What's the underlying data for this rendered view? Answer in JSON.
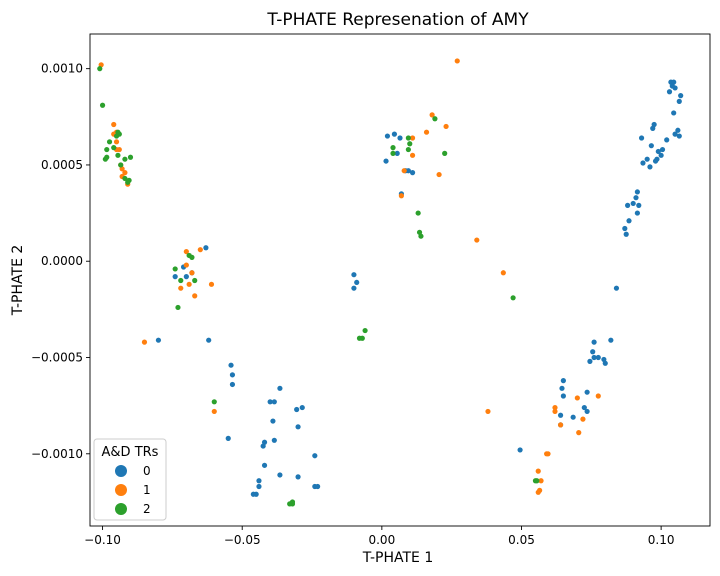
{
  "chart_data": {
    "type": "scatter",
    "title": "T-PHATE Represenation of AMY",
    "xlabel": "T-PHATE 1",
    "ylabel": "T-PHATE 2",
    "xlim": [
      -0.1045,
      0.1175
    ],
    "ylim": [
      -0.001375,
      0.00118
    ],
    "xticks": [
      -0.1,
      -0.05,
      0.0,
      0.05,
      0.1
    ],
    "xtick_labels": [
      "−0.10",
      "−0.05",
      "0.00",
      "0.05",
      "0.10"
    ],
    "yticks": [
      -0.001,
      -0.0005,
      0.0,
      0.0005,
      0.001
    ],
    "ytick_labels": [
      "−0.0010",
      "−0.0005",
      "0.0000",
      "0.0005",
      "0.0010"
    ],
    "grid": false,
    "legend": {
      "title": "A&D TRs",
      "position": "lower-left"
    },
    "series": [
      {
        "name": "0",
        "color": "#1f77b4",
        "points": [
          [
            0.1035,
            0.00093
          ],
          [
            0.1045,
            0.00093
          ],
          [
            0.105,
            0.0009
          ],
          [
            0.104,
            0.00091
          ],
          [
            0.107,
            0.00086
          ],
          [
            0.1065,
            0.00083
          ],
          [
            0.103,
            0.00088
          ],
          [
            0.1045,
            0.00077
          ],
          [
            0.106,
            0.00068
          ],
          [
            0.1065,
            0.00065
          ],
          [
            0.105,
            0.00066
          ],
          [
            0.0975,
            0.00071
          ],
          [
            0.097,
            0.00069
          ],
          [
            0.102,
            0.00063
          ],
          [
            0.093,
            0.00064
          ],
          [
            0.0965,
            0.0006
          ],
          [
            0.099,
            0.00057
          ],
          [
            0.1,
            0.00055
          ],
          [
            0.1005,
            0.00058
          ],
          [
            0.0985,
            0.00053
          ],
          [
            0.098,
            0.00052
          ],
          [
            0.095,
            0.00053
          ],
          [
            0.096,
            0.00049
          ],
          [
            0.0935,
            0.00051
          ],
          [
            0.0915,
            0.00036
          ],
          [
            0.091,
            0.00033
          ],
          [
            0.09,
            0.0003
          ],
          [
            0.092,
            0.00029
          ],
          [
            0.088,
            0.00029
          ],
          [
            0.0915,
            0.00025
          ],
          [
            0.0885,
            0.00021
          ],
          [
            0.087,
            0.00017
          ],
          [
            0.0875,
            0.00014
          ],
          [
            0.084,
            -0.00014
          ],
          [
            0.082,
            -0.00041
          ],
          [
            0.076,
            -0.00042
          ],
          [
            0.0755,
            -0.00047
          ],
          [
            0.0775,
            -0.0005
          ],
          [
            0.076,
            -0.0005
          ],
          [
            0.0795,
            -0.00051
          ],
          [
            0.08,
            -0.00053
          ],
          [
            0.0745,
            -0.00052
          ],
          [
            0.0735,
            -0.00068
          ],
          [
            0.0725,
            -0.00076
          ],
          [
            0.0735,
            -0.00078
          ],
          [
            0.065,
            -0.00062
          ],
          [
            0.0645,
            -0.00066
          ],
          [
            0.065,
            -0.0007
          ],
          [
            0.0685,
            -0.00081
          ],
          [
            0.064,
            -0.00085
          ],
          [
            0.0495,
            -0.00098
          ],
          [
            0.064,
            -0.0008
          ],
          [
            0.0045,
            0.00066
          ],
          [
            0.002,
            0.00065
          ],
          [
            0.0065,
            0.00064
          ],
          [
            0.0015,
            0.00052
          ],
          [
            0.0085,
            0.00047
          ],
          [
            0.0095,
            0.00047
          ],
          [
            0.011,
            0.00046
          ],
          [
            0.007,
            0.00035
          ],
          [
            0.0055,
            0.00056
          ],
          [
            -0.01,
            -7e-05
          ],
          [
            -0.009,
            -0.00011
          ],
          [
            -0.01,
            -0.00014
          ],
          [
            -0.063,
            7e-05
          ],
          [
            -0.071,
            -3e-05
          ],
          [
            -0.074,
            -8e-05
          ],
          [
            -0.07,
            -8e-05
          ],
          [
            -0.068,
            -6e-05
          ],
          [
            -0.062,
            -0.00041
          ],
          [
            -0.08,
            -0.00041
          ],
          [
            -0.054,
            -0.00054
          ],
          [
            -0.0535,
            -0.00059
          ],
          [
            -0.0535,
            -0.00064
          ],
          [
            -0.055,
            -0.00092
          ],
          [
            -0.0365,
            -0.00066
          ],
          [
            -0.0385,
            -0.00073
          ],
          [
            -0.04,
            -0.00073
          ],
          [
            -0.0285,
            -0.00076
          ],
          [
            -0.0305,
            -0.00077
          ],
          [
            -0.039,
            -0.00083
          ],
          [
            -0.042,
            -0.00094
          ],
          [
            -0.0425,
            -0.00096
          ],
          [
            -0.0385,
            -0.00093
          ],
          [
            -0.03,
            -0.00086
          ],
          [
            -0.024,
            -0.00101
          ],
          [
            -0.042,
            -0.00106
          ],
          [
            -0.044,
            -0.00114
          ],
          [
            -0.044,
            -0.00117
          ],
          [
            -0.0365,
            -0.00111
          ],
          [
            -0.045,
            -0.00121
          ],
          [
            -0.046,
            -0.00121
          ],
          [
            -0.024,
            -0.00117
          ],
          [
            -0.023,
            -0.00117
          ],
          [
            -0.03,
            -0.00112
          ]
        ]
      },
      {
        "name": "1",
        "color": "#ff7f0e",
        "points": [
          [
            -0.1005,
            0.00102
          ],
          [
            -0.096,
            0.00071
          ],
          [
            -0.095,
            0.00067
          ],
          [
            -0.096,
            0.00066
          ],
          [
            -0.095,
            0.00062
          ],
          [
            -0.094,
            0.00058
          ],
          [
            -0.095,
            0.00058
          ],
          [
            -0.0935,
            0.0005
          ],
          [
            -0.093,
            0.00048
          ],
          [
            -0.092,
            0.00046
          ],
          [
            -0.093,
            0.00044
          ],
          [
            -0.091,
            0.0004
          ],
          [
            0.027,
            0.00104
          ],
          [
            0.018,
            0.00076
          ],
          [
            0.023,
            0.0007
          ],
          [
            0.016,
            0.00067
          ],
          [
            0.011,
            0.00064
          ],
          [
            0.011,
            0.00055
          ],
          [
            0.008,
            0.00047
          ],
          [
            0.007,
            0.00034
          ],
          [
            0.0205,
            0.00045
          ],
          [
            0.034,
            0.00011
          ],
          [
            0.0435,
            -6e-05
          ],
          [
            0.038,
            -0.00078
          ],
          [
            -0.07,
            5e-05
          ],
          [
            -0.065,
            6e-05
          ],
          [
            -0.07,
            -2e-05
          ],
          [
            -0.068,
            -6e-05
          ],
          [
            -0.061,
            -0.00012
          ],
          [
            -0.069,
            -0.00012
          ],
          [
            -0.072,
            -0.00014
          ],
          [
            -0.067,
            -0.00018
          ],
          [
            -0.085,
            -0.00042
          ],
          [
            -0.06,
            -0.00078
          ],
          [
            0.0775,
            -0.0007
          ],
          [
            0.07,
            -0.00071
          ],
          [
            0.062,
            -0.00076
          ],
          [
            0.062,
            -0.00078
          ],
          [
            0.072,
            -0.00082
          ],
          [
            0.064,
            -0.00085
          ],
          [
            0.0705,
            -0.00089
          ],
          [
            0.059,
            -0.001
          ],
          [
            0.0595,
            -0.001
          ],
          [
            0.056,
            -0.00109
          ],
          [
            0.057,
            -0.00114
          ],
          [
            0.0565,
            -0.00119
          ],
          [
            0.056,
            -0.0012
          ]
        ]
      },
      {
        "name": "2",
        "color": "#2ca02c",
        "points": [
          [
            -0.101,
            0.001
          ],
          [
            -0.1,
            0.00081
          ],
          [
            -0.0945,
            0.00067
          ],
          [
            -0.094,
            0.00066
          ],
          [
            -0.095,
            0.00065
          ],
          [
            -0.0975,
            0.00062
          ],
          [
            -0.096,
            0.00059
          ],
          [
            -0.0985,
            0.00058
          ],
          [
            -0.0985,
            0.00054
          ],
          [
            -0.099,
            0.00053
          ],
          [
            -0.0945,
            0.00055
          ],
          [
            -0.09,
            0.00054
          ],
          [
            -0.092,
            0.00053
          ],
          [
            -0.0935,
            0.0005
          ],
          [
            -0.092,
            0.00043
          ],
          [
            -0.0905,
            0.00042
          ],
          [
            -0.091,
            0.00041
          ],
          [
            0.019,
            0.00074
          ],
          [
            0.0095,
            0.00064
          ],
          [
            0.01,
            0.00061
          ],
          [
            0.004,
            0.00059
          ],
          [
            0.0225,
            0.00056
          ],
          [
            0.0095,
            0.00058
          ],
          [
            0.004,
            0.00056
          ],
          [
            0.013,
            0.00025
          ],
          [
            0.0135,
            0.00015
          ],
          [
            0.014,
            0.00013
          ],
          [
            0.047,
            -0.00019
          ],
          [
            -0.007,
            -0.0004
          ],
          [
            -0.006,
            -0.00036
          ],
          [
            -0.008,
            -0.0004
          ],
          [
            -0.074,
            -4e-05
          ],
          [
            -0.068,
            2e-05
          ],
          [
            -0.069,
            3e-05
          ],
          [
            -0.072,
            -0.0001
          ],
          [
            -0.067,
            -0.0001
          ],
          [
            -0.073,
            -0.00024
          ],
          [
            -0.06,
            -0.00073
          ],
          [
            -0.033,
            -0.00126
          ],
          [
            -0.032,
            -0.00126
          ],
          [
            -0.032,
            -0.00125
          ],
          [
            0.0555,
            -0.00114
          ],
          [
            0.055,
            -0.00114
          ]
        ]
      }
    ]
  }
}
